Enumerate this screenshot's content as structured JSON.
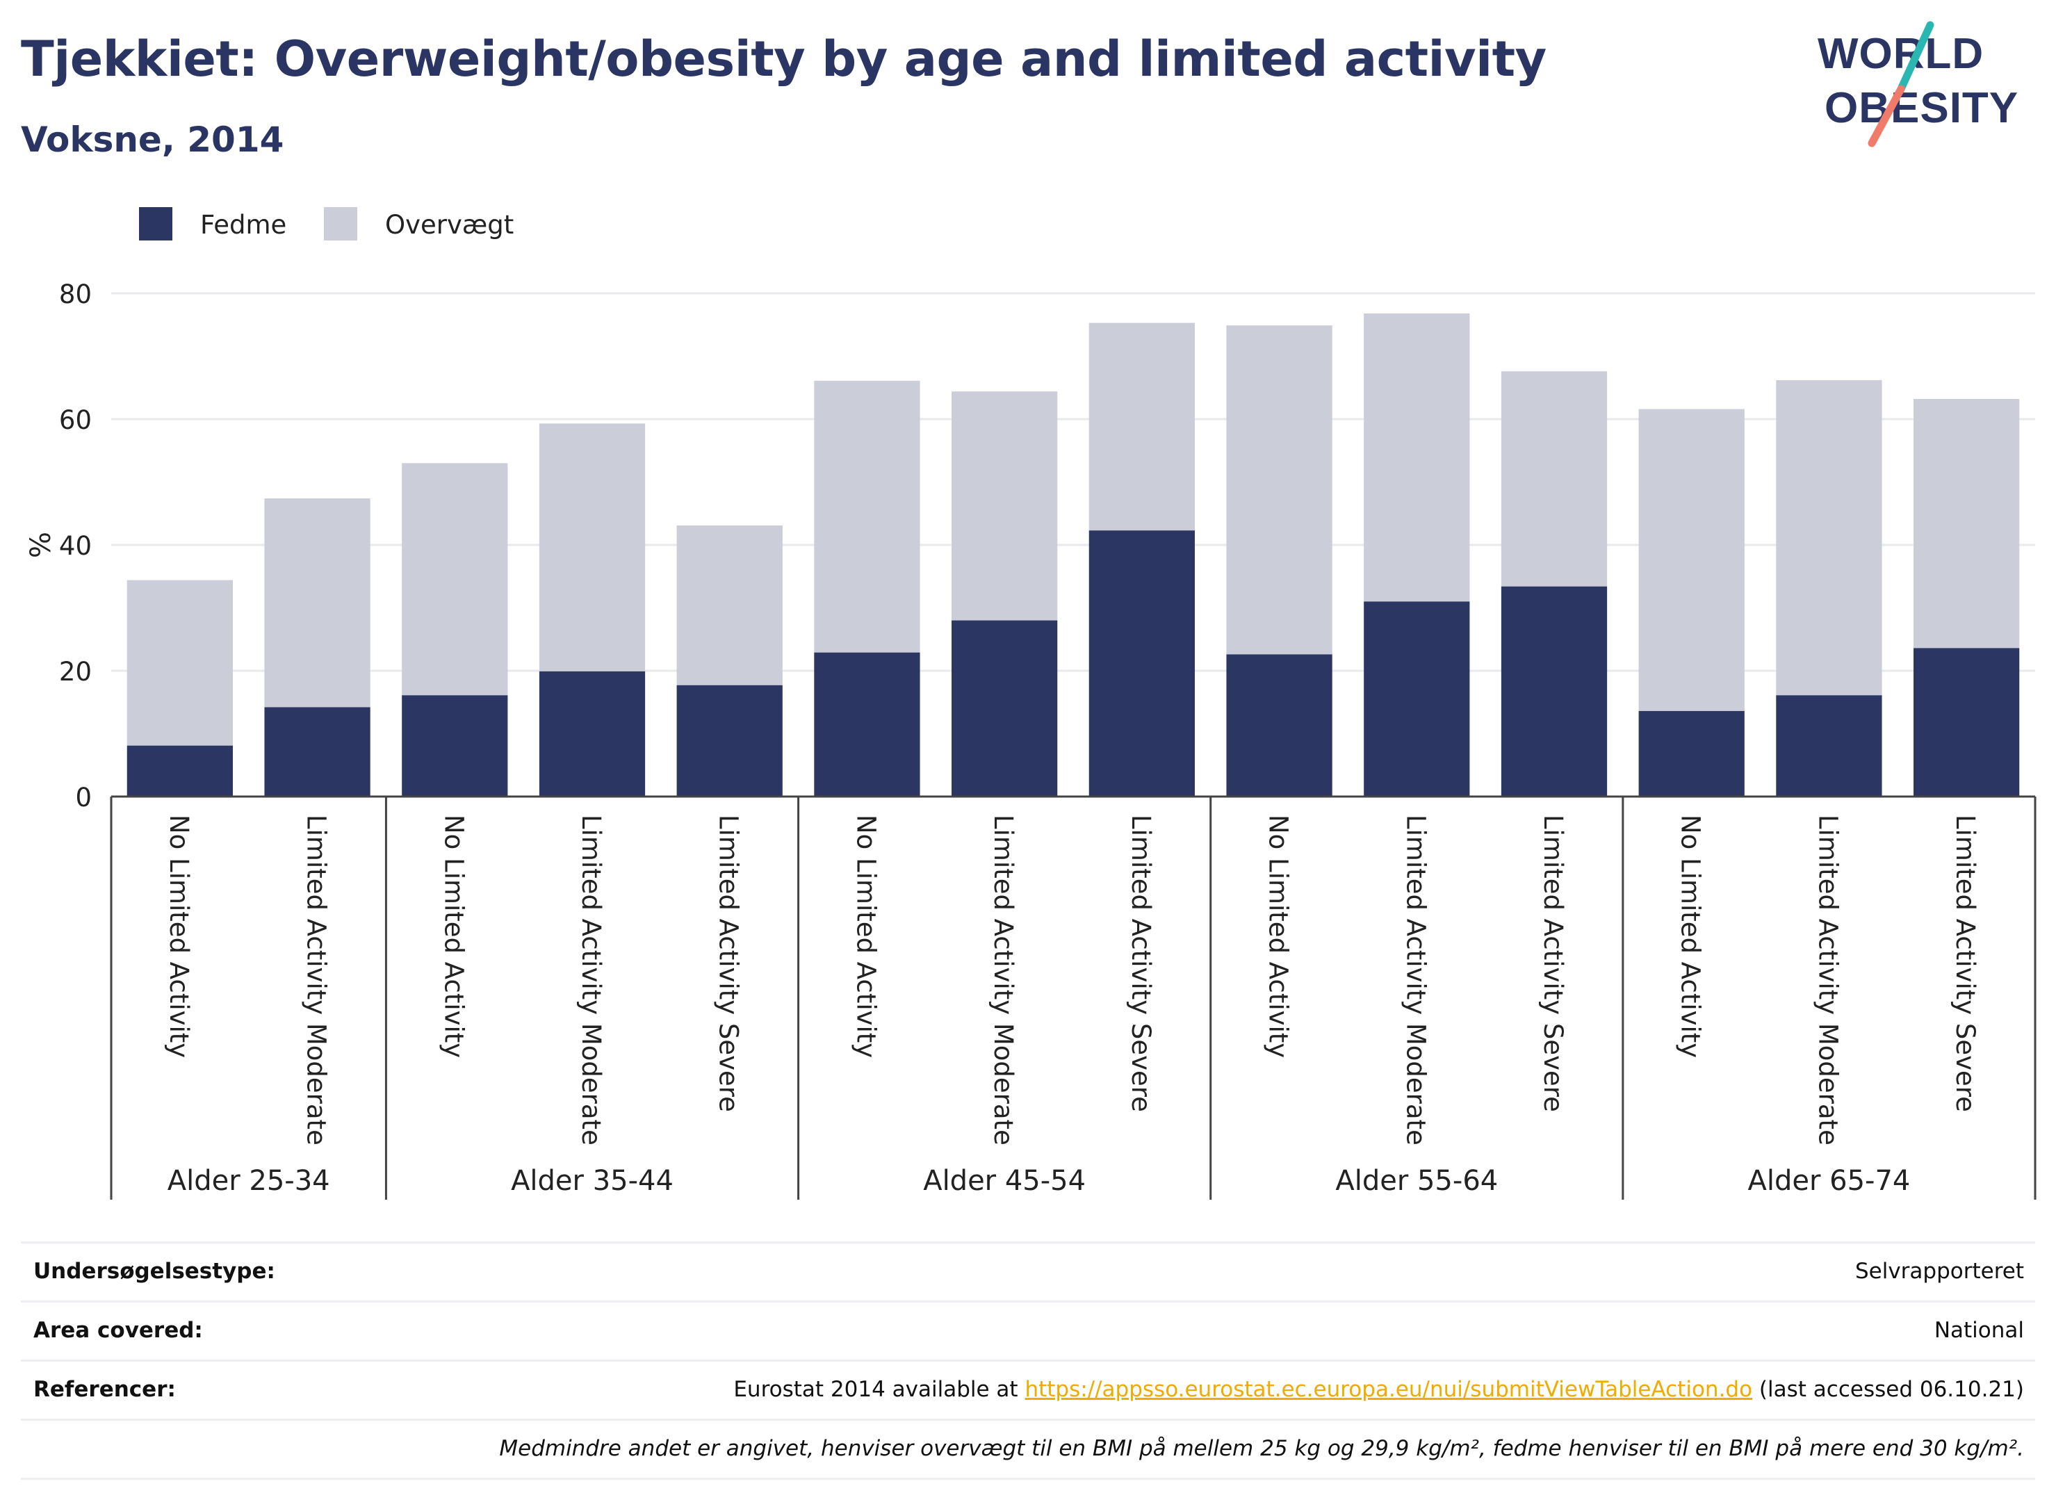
{
  "title": "Tjekkiet: Overweight/obesity by age and limited activity",
  "subtitle": "Voksne, 2014",
  "logo": {
    "line1": "WORLD",
    "line2": "OBESITY",
    "text_color": "#2a3563",
    "slash_colors": [
      "#2ab7b1",
      "#f07b6a"
    ]
  },
  "colors": {
    "fedme": "#2b3663",
    "overvaegt": "#cbcdd9",
    "title": "#2a3563",
    "link": "#f0ab00"
  },
  "chart_data": {
    "type": "bar",
    "stacked": true,
    "ylabel": "%",
    "ylim": [
      0,
      80
    ],
    "yticks": [
      0,
      20,
      40,
      60,
      80
    ],
    "grid": true,
    "legend_position": "top-left",
    "groups": [
      {
        "label": "Alder 25-34",
        "categories": [
          "No Limited Activity",
          "Limited Activity Moderate"
        ]
      },
      {
        "label": "Alder 35-44",
        "categories": [
          "No Limited Activity",
          "Limited Activity Moderate",
          "Limited Activity Severe"
        ]
      },
      {
        "label": "Alder 45-54",
        "categories": [
          "No Limited Activity",
          "Limited Activity Moderate",
          "Limited Activity Severe"
        ]
      },
      {
        "label": "Alder 55-64",
        "categories": [
          "No Limited Activity",
          "Limited Activity Moderate",
          "Limited Activity Severe"
        ]
      },
      {
        "label": "Alder 65-74",
        "categories": [
          "No Limited Activity",
          "Limited Activity Moderate",
          "Limited Activity Severe"
        ]
      }
    ],
    "series": [
      {
        "name": "Fedme",
        "values": [
          8.1,
          14.2,
          16.1,
          19.9,
          17.7,
          22.9,
          28.0,
          42.3,
          22.6,
          31.0,
          33.4,
          13.6,
          16.1,
          23.6
        ]
      },
      {
        "name": "Overvægt",
        "values": [
          26.3,
          33.2,
          36.9,
          39.4,
          25.4,
          43.2,
          36.4,
          33.0,
          52.3,
          45.8,
          34.2,
          48.0,
          50.1,
          39.6
        ]
      }
    ]
  },
  "info": {
    "rows": [
      {
        "label": "Undersøgelsestype:",
        "value": "Selvrapporteret"
      },
      {
        "label": "Area covered:",
        "value": "National"
      },
      {
        "label": "Referencer:",
        "value_pre": "Eurostat 2014 available at ",
        "link": "https://appsso.eurostat.ec.europa.eu/nui/submitViewTableAction.do",
        "value_post": " (last accessed 06.10.21)"
      }
    ],
    "note": "Medmindre andet er angivet, henviser overvægt til en BMI på mellem 25 kg og 29,9 kg/m², fedme henviser til en BMI på mere end 30 kg/m²."
  }
}
